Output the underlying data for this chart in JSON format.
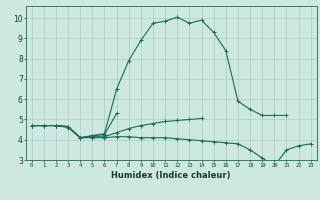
{
  "xlabel": "Humidex (Indice chaleur)",
  "bg_color": "#cce8e0",
  "grid_color": "#aaccC4",
  "line_color": "#1a6b5a",
  "xlim": [
    -0.5,
    23.5
  ],
  "ylim": [
    3.0,
    10.6
  ],
  "xticks": [
    0,
    1,
    2,
    3,
    4,
    5,
    6,
    7,
    8,
    9,
    10,
    11,
    12,
    13,
    14,
    15,
    16,
    17,
    18,
    19,
    20,
    21,
    22,
    23
  ],
  "yticks": [
    3,
    4,
    5,
    6,
    7,
    8,
    9,
    10
  ],
  "series": [
    [
      4.7,
      4.7,
      4.7,
      4.6,
      4.1,
      4.2,
      4.3,
      6.5,
      7.9,
      8.9,
      9.75,
      9.85,
      10.05,
      9.75,
      9.9,
      9.3,
      8.4,
      5.9,
      5.5,
      5.2,
      5.2,
      5.2,
      null,
      null
    ],
    [
      4.7,
      4.7,
      4.7,
      4.65,
      4.1,
      4.2,
      4.25,
      5.3,
      null,
      null,
      null,
      null,
      null,
      null,
      null,
      null,
      null,
      null,
      null,
      null,
      null,
      null,
      null,
      null
    ],
    [
      4.7,
      4.7,
      4.7,
      4.65,
      4.1,
      4.15,
      4.15,
      4.35,
      4.55,
      4.7,
      4.8,
      4.9,
      4.95,
      5.0,
      5.05,
      null,
      null,
      null,
      null,
      null,
      null,
      null,
      null,
      null
    ],
    [
      4.7,
      4.7,
      4.7,
      4.65,
      4.1,
      4.1,
      4.1,
      4.15,
      4.15,
      4.1,
      4.1,
      4.1,
      4.05,
      4.0,
      3.95,
      3.9,
      3.85,
      3.8,
      3.5,
      3.1,
      2.7,
      3.5,
      3.7,
      3.8
    ]
  ]
}
